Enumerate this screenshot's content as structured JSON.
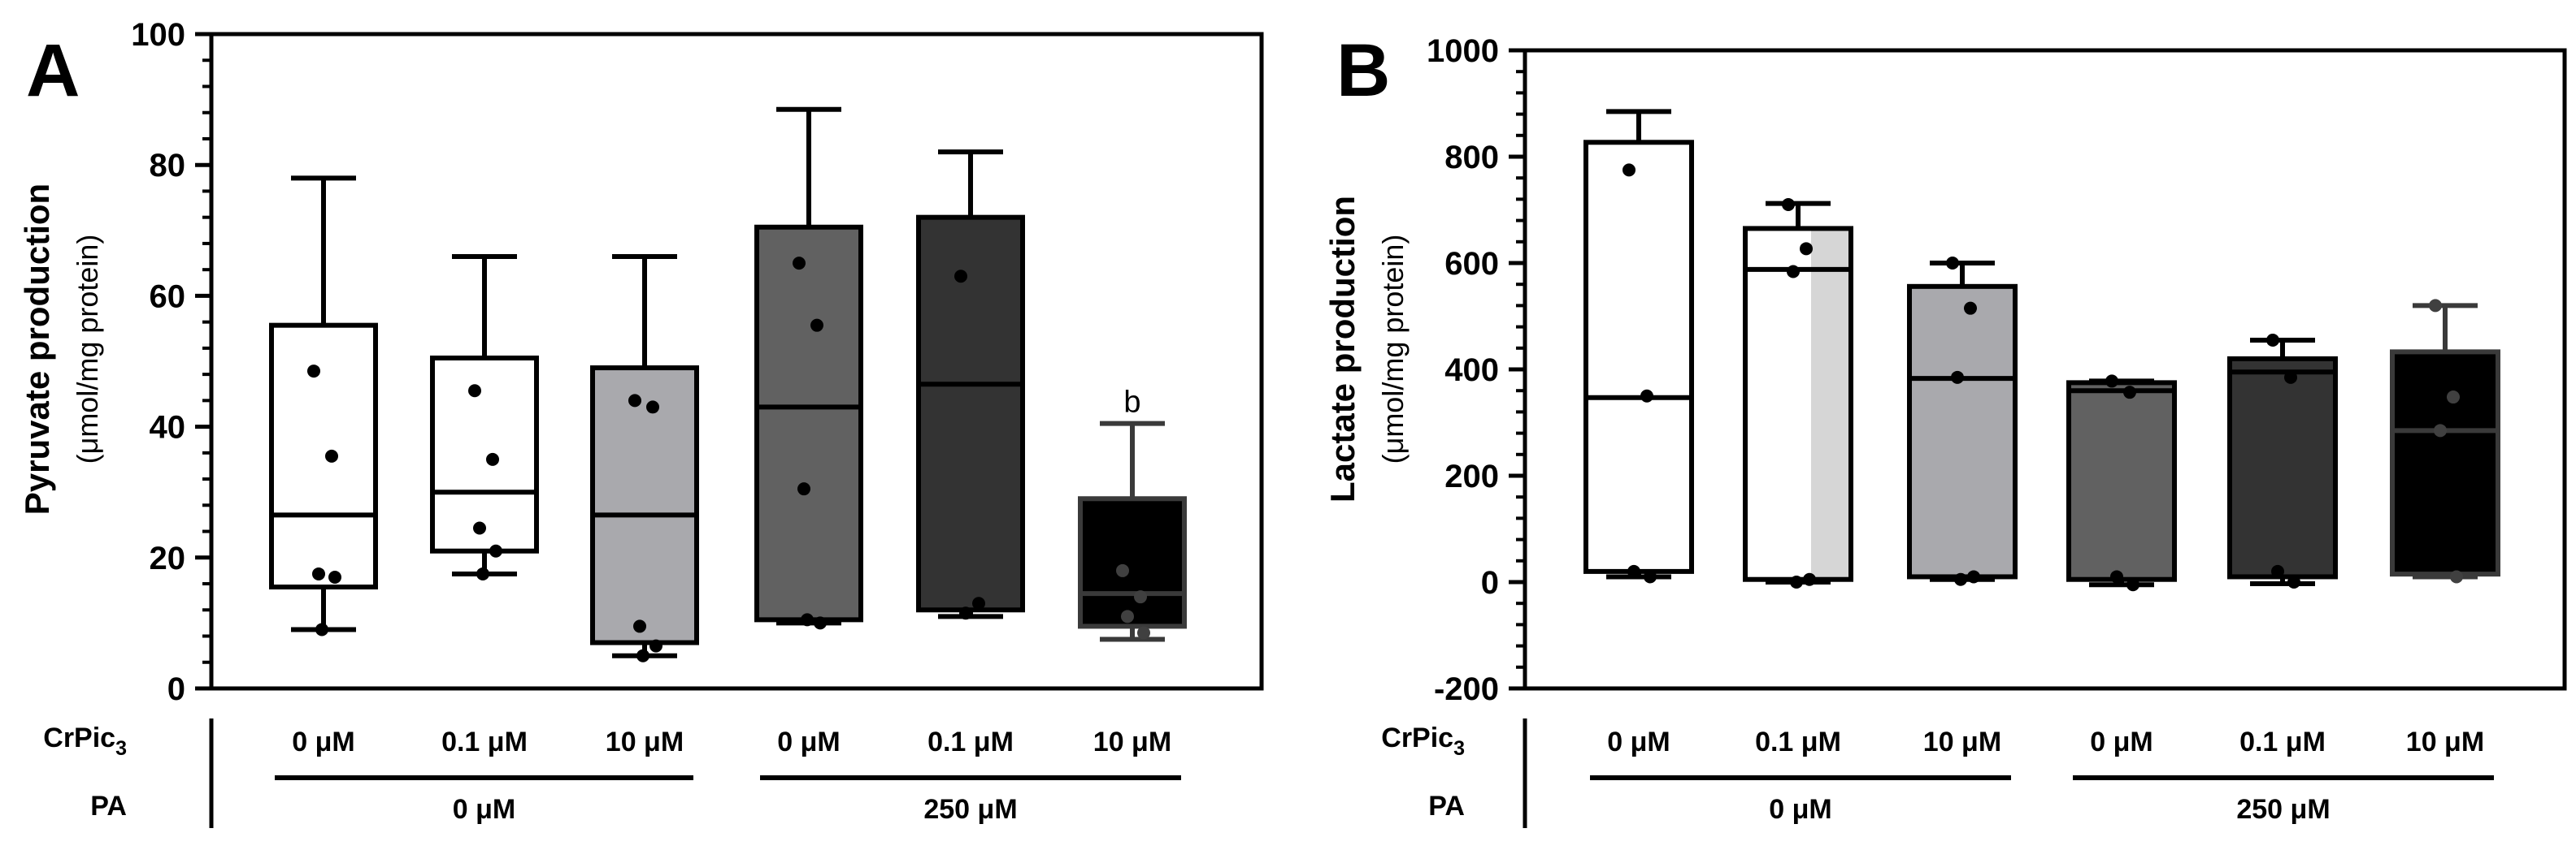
{
  "figure": {
    "row_labels": {
      "crpic_base": "CrPic",
      "crpic_sub": "3",
      "pa": "PA"
    }
  },
  "chart_data": [
    {
      "type": "box",
      "panel_label": "A",
      "ylabel": "Pyruvate production",
      "ylabel_unit": "(μmol/mg protein)",
      "ylim": [
        0,
        100
      ],
      "yticks": [
        0,
        20,
        40,
        60,
        80,
        100
      ],
      "ytick_labels": [
        "0",
        "20",
        "40",
        "60",
        "80",
        "100"
      ],
      "categories": [
        "0 μM",
        "0.1 μM",
        "10 μM",
        "0 μM",
        "0.1 μM",
        "10 μM"
      ],
      "groups": [
        {
          "label": "0 μM",
          "members": [
            0,
            1,
            2
          ]
        },
        {
          "label": "250 μM",
          "members": [
            3,
            4,
            5
          ]
        }
      ],
      "boxes": [
        {
          "fill": "#ffffff",
          "stroke": "#000000",
          "dot": "#000000",
          "min": 9,
          "q1": 15.5,
          "median": 26.5,
          "q3": 55.5,
          "max": 78,
          "points": [
            48.5,
            35.5,
            17.5,
            17,
            9
          ]
        },
        {
          "fill": "#ffffff",
          "stroke": "#000000",
          "dot": "#000000",
          "min": 17.5,
          "q1": 21,
          "median": 30,
          "q3": 50.5,
          "max": 66,
          "points": [
            45.5,
            35,
            24.5,
            21,
            17.5
          ]
        },
        {
          "fill": "#a9a9ad",
          "stroke": "#000000",
          "dot": "#000000",
          "min": 5,
          "q1": 7,
          "median": 26.5,
          "q3": 49,
          "max": 66,
          "points": [
            44,
            43,
            9.5,
            6.5,
            5
          ]
        },
        {
          "fill": "#616161",
          "stroke": "#000000",
          "dot": "#000000",
          "min": 10,
          "q1": 10.5,
          "median": 43,
          "q3": 70.5,
          "max": 88.5,
          "points": [
            65,
            55.5,
            30.5,
            10,
            10.5
          ]
        },
        {
          "fill": "#333333",
          "stroke": "#000000",
          "dot": "#000000",
          "min": 11,
          "q1": 12,
          "median": 46.5,
          "q3": 72,
          "max": 82,
          "points": [
            63,
            13,
            11.5
          ]
        },
        {
          "fill": "#000000",
          "stroke": "#3a3a3a",
          "dot": "#404040",
          "min": 7.5,
          "q1": 9.5,
          "median": 14.5,
          "q3": 29,
          "max": 40.5,
          "points": [
            18,
            14,
            11,
            8.5
          ],
          "annotation": "b"
        }
      ]
    },
    {
      "type": "box",
      "panel_label": "B",
      "ylabel": "Lactate production",
      "ylabel_unit": "(μmol/mg protein)",
      "ylim": [
        -200,
        1000
      ],
      "yticks": [
        -200,
        0,
        200,
        400,
        600,
        800,
        1000
      ],
      "ytick_labels": [
        "-200",
        "0",
        "200",
        "400",
        "600",
        "800",
        "1000"
      ],
      "categories": [
        "0 μM",
        "0.1 μM",
        "10 μM",
        "0 μM",
        "0.1 μM",
        "10 μM"
      ],
      "groups": [
        {
          "label": "0 μM",
          "members": [
            0,
            1,
            2
          ]
        },
        {
          "label": "250 μM",
          "members": [
            3,
            4,
            5
          ]
        }
      ],
      "boxes": [
        {
          "fill": "#ffffff",
          "stroke": "#000000",
          "dot": "#000000",
          "min": 10,
          "q1": 20,
          "median": 347,
          "q3": 827,
          "max": 885,
          "points": [
            775,
            350,
            20,
            10
          ]
        },
        {
          "fill": "#ffffff",
          "stroke": "#000000",
          "dot": "#000000",
          "min": 0,
          "q1": 5,
          "median": 588,
          "q3": 665,
          "max": 712,
          "points": [
            710,
            627,
            584,
            5,
            0
          ],
          "shade": "#d6d6d6"
        },
        {
          "fill": "#a9a9ad",
          "stroke": "#000000",
          "dot": "#000000",
          "min": 5,
          "q1": 10,
          "median": 383,
          "q3": 556,
          "max": 600,
          "points": [
            600,
            515,
            385,
            10,
            5
          ]
        },
        {
          "fill": "#616161",
          "stroke": "#000000",
          "dot": "#000000",
          "min": -5,
          "q1": 5,
          "median": 360,
          "q3": 375,
          "max": 378,
          "points": [
            378,
            357,
            10,
            -5
          ]
        },
        {
          "fill": "#333333",
          "stroke": "#000000",
          "dot": "#000000",
          "min": -3,
          "q1": 10,
          "median": 395,
          "q3": 420,
          "max": 455,
          "points": [
            455,
            385,
            20,
            0
          ]
        },
        {
          "fill": "#000000",
          "stroke": "#3a3a3a",
          "dot": "#404040",
          "min": 10,
          "q1": 15,
          "median": 285,
          "q3": 433,
          "max": 520,
          "points": [
            520,
            348,
            285,
            10
          ]
        }
      ]
    }
  ]
}
